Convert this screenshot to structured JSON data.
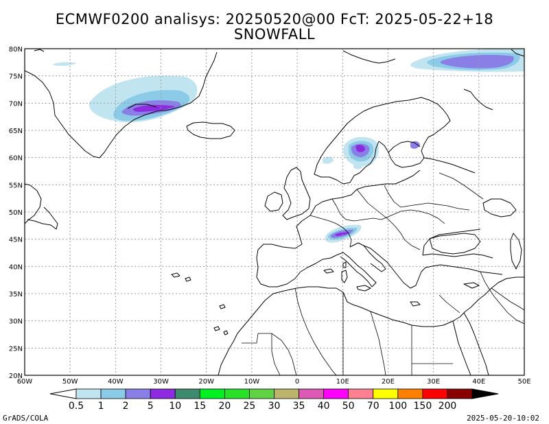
{
  "title": {
    "line1": "ECMWF0200 analisys: 20250520@00 FcT: 2025-05-22+18",
    "line2": "SNOWFALL"
  },
  "footer": {
    "left": "GrADS/COLA",
    "right": "2025-05-20-10:02"
  },
  "map": {
    "lon_range": [
      -60,
      50
    ],
    "lat_range": [
      20,
      80
    ],
    "lon_labels": [
      "60W",
      "50W",
      "40W",
      "30W",
      "20W",
      "10W",
      "0",
      "10E",
      "20E",
      "30E",
      "40E",
      "50E"
    ],
    "lat_labels": [
      "20N",
      "25N",
      "30N",
      "35N",
      "40N",
      "45N",
      "50N",
      "55N",
      "60N",
      "65N",
      "70N",
      "75N",
      "80N"
    ]
  },
  "colorbar": {
    "labels": [
      "0.5",
      "1",
      "2",
      "5",
      "10",
      "15",
      "20",
      "25",
      "30",
      "35",
      "40",
      "50",
      "70",
      "100",
      "150",
      "200"
    ],
    "colors": [
      "#c0e4f0",
      "#8ccbe8",
      "#8a7fe6",
      "#8c2be0",
      "#3d8a6e",
      "#00f020",
      "#28e028",
      "#62d245",
      "#bcb46c",
      "#dc5ab4",
      "#ff00ff",
      "#ff8090",
      "#ffff00",
      "#ff8000",
      "#ff0000",
      "#880000"
    ],
    "under_color": "#ffffff",
    "over_color": "#000000"
  },
  "snow_regions": [
    {
      "name": "greenland-east",
      "levels": [
        "0.5",
        "1",
        "2",
        "5"
      ]
    },
    {
      "name": "svalbard-northeast",
      "levels": [
        "0.5",
        "1",
        "2"
      ]
    },
    {
      "name": "scandinavia",
      "levels": [
        "0.5",
        "1",
        "2",
        "5"
      ]
    },
    {
      "name": "alps",
      "levels": [
        "0.5",
        "1",
        "2",
        "5"
      ]
    }
  ]
}
